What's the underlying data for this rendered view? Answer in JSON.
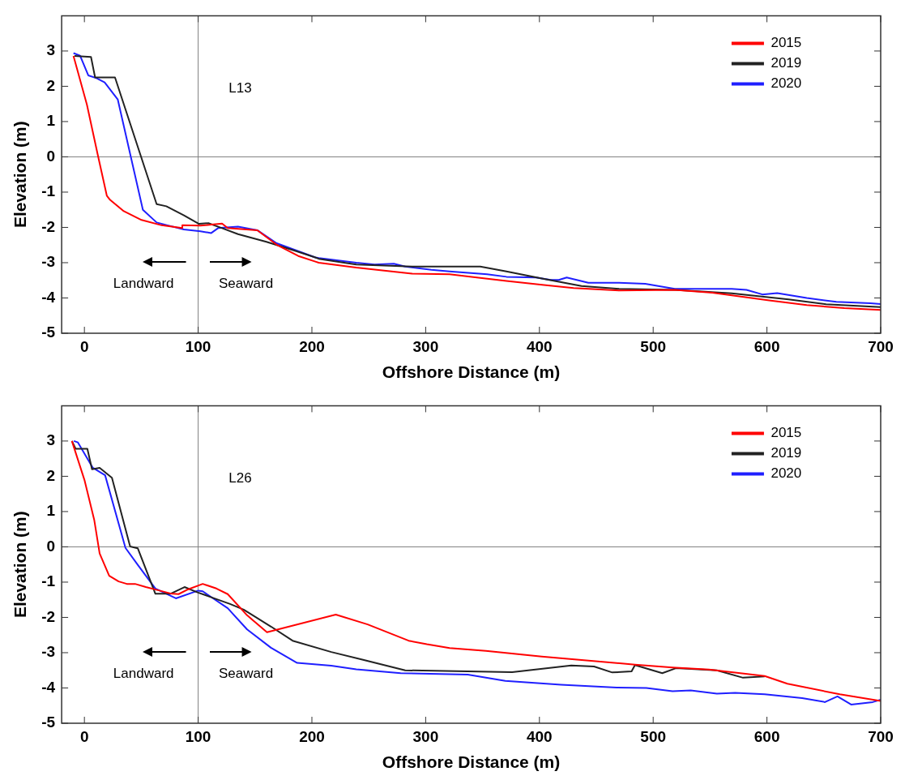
{
  "chart_data": [
    {
      "type": "line",
      "xlabel": "Offshore Distance (m)",
      "ylabel": "Elevation (m)",
      "xlim": [
        -20,
        700
      ],
      "ylim": [
        -5,
        4
      ],
      "xticks": [
        0,
        100,
        200,
        300,
        400,
        500,
        600,
        700
      ],
      "yticks": [
        -5,
        -4,
        -3,
        -2,
        -1,
        0,
        1,
        2,
        3
      ],
      "legend": "top right",
      "annotations": [
        "L13",
        "Landward",
        "Seaward"
      ],
      "ref_lines": [
        {
          "axis": "x",
          "value": 100,
          "color": "#808080"
        },
        {
          "axis": "y",
          "value": 0,
          "color": "#808080"
        }
      ],
      "series": [
        {
          "name": "2015",
          "color": "#ff0000",
          "x": [
            -9.6,
            2.2,
            11.8,
            19.7,
            22.6,
            34.6,
            50.2,
            68,
            86,
            86.1,
            102,
            111.5,
            121,
            126,
            152,
            169,
            188,
            203,
            206,
            239,
            288,
            321,
            345,
            371,
            404,
            430,
            470,
            519,
            552,
            602,
            635,
            668,
            700
          ],
          "values": [
            2.86,
            1.48,
            0.05,
            -1.1,
            -1.22,
            -1.54,
            -1.79,
            -1.94,
            -2.02,
            -1.94,
            -1.95,
            -1.92,
            -1.89,
            -2.02,
            -2.08,
            -2.49,
            -2.81,
            -2.97,
            -3.0,
            -3.14,
            -3.31,
            -3.33,
            -3.42,
            -3.52,
            -3.63,
            -3.72,
            -3.79,
            -3.77,
            -3.85,
            -4.07,
            -4.2,
            -4.29,
            -4.34
          ]
        },
        {
          "name": "2019",
          "color": "#222222",
          "x": [
            -8.7,
            5.8,
            9.4,
            26.9,
            63.5,
            72,
            87.5,
            100.7,
            109,
            121,
            135,
            160,
            184,
            203,
            206,
            239,
            288,
            348,
            371,
            404,
            437,
            470,
            519,
            569,
            619,
            652,
            700
          ],
          "values": [
            2.86,
            2.83,
            2.25,
            2.25,
            -1.34,
            -1.4,
            -1.66,
            -1.9,
            -1.88,
            -2.02,
            -2.19,
            -2.41,
            -2.65,
            -2.85,
            -2.89,
            -3.05,
            -3.11,
            -3.11,
            -3.25,
            -3.46,
            -3.66,
            -3.74,
            -3.77,
            -3.87,
            -4.04,
            -4.18,
            -4.26
          ]
        },
        {
          "name": "2020",
          "color": "#1f1fff",
          "x": [
            -9.6,
            -3.8,
            3.4,
            10.6,
            17.8,
            29.3,
            51.4,
            63.5,
            73,
            87.5,
            102,
            111.5,
            117.5,
            135,
            152,
            169,
            203,
            206,
            239,
            255,
            272,
            282,
            305,
            321,
            354,
            371,
            397,
            410,
            417,
            424,
            443,
            470,
            493,
            519,
            569,
            582,
            596,
            609,
            635,
            661,
            691,
            700
          ],
          "values": [
            2.94,
            2.87,
            2.31,
            2.23,
            2.11,
            1.63,
            -1.5,
            -1.86,
            -1.94,
            -2.06,
            -2.11,
            -2.16,
            -2.02,
            -1.98,
            -2.08,
            -2.45,
            -2.85,
            -2.87,
            -3.0,
            -3.05,
            -3.03,
            -3.11,
            -3.2,
            -3.25,
            -3.33,
            -3.4,
            -3.42,
            -3.49,
            -3.49,
            -3.42,
            -3.57,
            -3.57,
            -3.6,
            -3.74,
            -3.74,
            -3.77,
            -3.9,
            -3.86,
            -4.0,
            -4.11,
            -4.15,
            -4.17
          ]
        }
      ]
    },
    {
      "type": "line",
      "xlabel": "Offshore Distance (m)",
      "ylabel": "Elevation (m)",
      "xlim": [
        -20,
        700
      ],
      "ylim": [
        -5,
        4
      ],
      "xticks": [
        0,
        100,
        200,
        300,
        400,
        500,
        600,
        700
      ],
      "yticks": [
        -5,
        -4,
        -3,
        -2,
        -1,
        0,
        1,
        2,
        3
      ],
      "legend": "top right",
      "annotations": [
        "L26",
        "Landward",
        "Seaward"
      ],
      "ref_lines": [
        {
          "axis": "x",
          "value": 100,
          "color": "#808080"
        },
        {
          "axis": "y",
          "value": 0,
          "color": "#808080"
        }
      ],
      "series": [
        {
          "name": "2015",
          "color": "#ff0000",
          "x": [
            -11,
            0.2,
            8.6,
            13.4,
            21.8,
            30.1,
            37.3,
            44.5,
            54,
            66,
            75.6,
            82.8,
            90,
            104,
            116,
            126,
            143,
            160.5,
            221,
            249,
            285,
            301,
            321,
            353,
            402,
            435,
            484,
            517,
            549,
            598,
            618,
            664,
            700
          ],
          "values": [
            3.0,
            1.88,
            0.77,
            -0.19,
            -0.82,
            -0.98,
            -1.05,
            -1.05,
            -1.14,
            -1.24,
            -1.32,
            -1.34,
            -1.22,
            -1.05,
            -1.18,
            -1.34,
            -1.94,
            -2.42,
            -1.92,
            -2.2,
            -2.66,
            -2.76,
            -2.87,
            -2.95,
            -3.11,
            -3.2,
            -3.34,
            -3.42,
            -3.48,
            -3.66,
            -3.88,
            -4.18,
            -4.37
          ]
        },
        {
          "name": "2019",
          "color": "#222222",
          "x": [
            -11,
            -7.7,
            2.6,
            6.7,
            13.4,
            24.2,
            40.2,
            46.9,
            62.4,
            75.6,
            88,
            99.5,
            128,
            140,
            164,
            183,
            217,
            245,
            282,
            376,
            428,
            448,
            464,
            481,
            484,
            508,
            520,
            556,
            579,
            598
          ],
          "values": [
            3.0,
            2.78,
            2.78,
            2.2,
            2.24,
            1.96,
            0.01,
            -0.04,
            -1.33,
            -1.33,
            -1.14,
            -1.29,
            -1.62,
            -1.78,
            -2.26,
            -2.66,
            -2.98,
            -3.2,
            -3.5,
            -3.55,
            -3.36,
            -3.39,
            -3.56,
            -3.53,
            -3.35,
            -3.58,
            -3.44,
            -3.5,
            -3.71,
            -3.67
          ]
        },
        {
          "name": "2020",
          "color": "#1f1fff",
          "x": [
            -9.3,
            -5.7,
            7.4,
            18.2,
            36.1,
            46.9,
            62.4,
            80.4,
            100,
            104,
            126,
            143,
            164,
            187,
            217,
            239,
            278,
            337,
            370,
            419,
            468,
            494,
            517,
            533,
            556,
            572,
            598,
            631,
            651,
            662,
            674,
            693,
            700
          ],
          "values": [
            3.0,
            2.96,
            2.24,
            2.03,
            -0.03,
            -0.51,
            -1.18,
            -1.46,
            -1.24,
            -1.26,
            -1.74,
            -2.34,
            -2.86,
            -3.29,
            -3.37,
            -3.47,
            -3.58,
            -3.62,
            -3.8,
            -3.91,
            -3.99,
            -4.0,
            -4.09,
            -4.07,
            -4.16,
            -4.14,
            -4.18,
            -4.29,
            -4.4,
            -4.24,
            -4.47,
            -4.4,
            -4.33
          ]
        }
      ]
    }
  ]
}
